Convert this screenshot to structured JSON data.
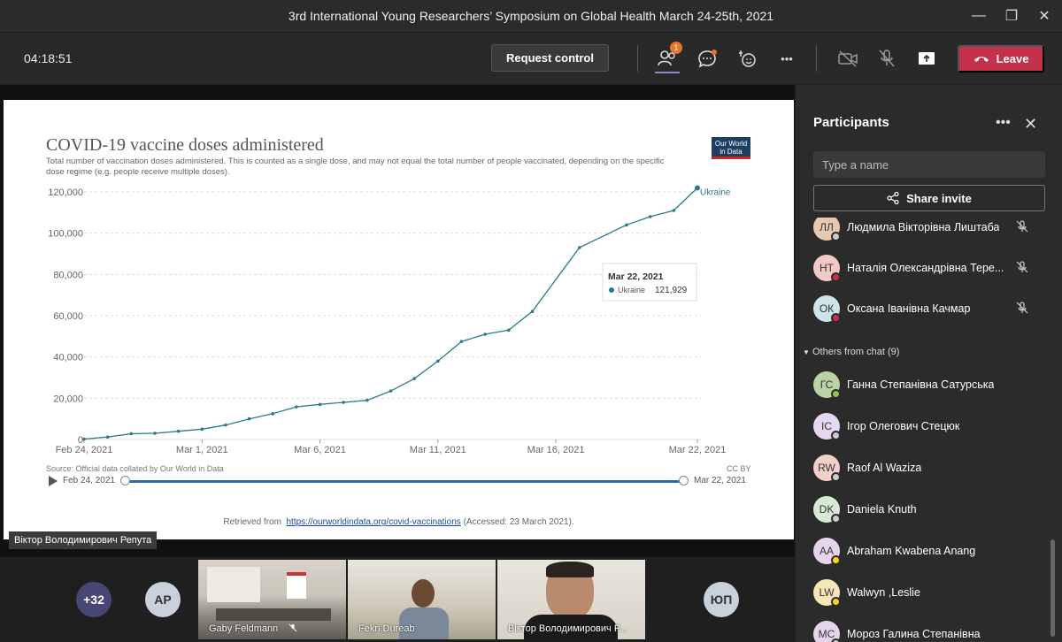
{
  "window": {
    "title": "3rd International Young Researchers’ Symposium on Global Health March 24-25th, 2021",
    "minimize": "—",
    "restore": "❐",
    "close": "✕"
  },
  "toolbar": {
    "timer": "04:18:51",
    "request_control": "Request control",
    "participants_badge": "1",
    "more": "•••",
    "leave": "Leave"
  },
  "slide": {
    "logo_text": "Our World in Data",
    "source": "Source: Official data collated by Our World in Data",
    "license": "CC BY",
    "timeline_start": "Feb 24, 2021",
    "timeline_end": "Mar 22, 2021",
    "retrieved_prefix": "Retrieved from",
    "retrieved_link": "https://ourworldindata.org/covid-vaccinations",
    "retrieved_suffix": "(Accessed: 23 March 2021).",
    "presenter": "Віктор Володимирович Репута"
  },
  "chart_data": {
    "type": "line",
    "title": "COVID-19 vaccine doses administered",
    "subtitle": "Total number of vaccination doses administered. This is counted as a single dose, and may not equal the total number of people vaccinated, depending on the specific dose regime (e.g. people receive multiple doses).",
    "x_tick_labels": [
      "Feb 24, 2021",
      "Mar 1, 2021",
      "Mar 6, 2021",
      "Mar 11, 2021",
      "Mar 16, 2021",
      "Mar 22, 2021"
    ],
    "x_tick_days": [
      0,
      5,
      10,
      15,
      20,
      26
    ],
    "y_ticks": [
      0,
      20000,
      40000,
      60000,
      80000,
      100000,
      120000
    ],
    "y_tick_labels": [
      "0",
      "20,000",
      "40,000",
      "60,000",
      "80,000",
      "100,000",
      "120,000"
    ],
    "ylim": [
      0,
      120000
    ],
    "grid": true,
    "series": [
      {
        "name": "Ukraine",
        "color": "#2a7a8c",
        "x": [
          "Feb 24, 2021",
          "Feb 25, 2021",
          "Feb 26, 2021",
          "Feb 27, 2021",
          "Feb 28, 2021",
          "Mar 1, 2021",
          "Mar 2, 2021",
          "Mar 3, 2021",
          "Mar 4, 2021",
          "Mar 5, 2021",
          "Mar 6, 2021",
          "Mar 7, 2021",
          "Mar 8, 2021",
          "Mar 9, 2021",
          "Mar 10, 2021",
          "Mar 11, 2021",
          "Mar 12, 2021",
          "Mar 13, 2021",
          "Mar 14, 2021",
          "Mar 15, 2021",
          "Mar 17, 2021",
          "Mar 19, 2021",
          "Mar 20, 2021",
          "Mar 21, 2021",
          "Mar 22, 2021"
        ],
        "x_days": [
          0,
          1,
          2,
          3,
          4,
          5,
          6,
          7,
          8,
          9,
          10,
          11,
          12,
          13,
          14,
          15,
          16,
          17,
          18,
          19,
          21,
          23,
          24,
          25,
          26
        ],
        "values": [
          200,
          1200,
          2800,
          3000,
          4000,
          5000,
          7000,
          10000,
          12500,
          15800,
          17000,
          18000,
          19000,
          23500,
          29500,
          38000,
          47500,
          51000,
          53000,
          62000,
          93000,
          104000,
          108000,
          111000,
          121929
        ]
      }
    ],
    "series_label": "Ukraine",
    "tooltip": {
      "date": "Mar 22, 2021",
      "series": "Ukraine",
      "value": "121,929"
    }
  },
  "strip": {
    "overflow_count": "+32",
    "avatar1": "AP",
    "avatar2": "ЮП",
    "tiles": [
      {
        "name": "Gaby Feldmann"
      },
      {
        "name": "Fekri.Dureab"
      },
      {
        "name": "Віктор Володимирович Р..."
      }
    ]
  },
  "panel": {
    "title": "Participants",
    "more": "•••",
    "close": "✕",
    "search_placeholder": "Type a name",
    "share_invite": "Share invite",
    "section_label": "Others from chat (9)",
    "in_meeting": [
      {
        "name": "Людмила Вікторівна Лиштаба",
        "initials": "ЛЛ",
        "color": "#e8c9b0",
        "status": "#cccccc",
        "muted": true
      },
      {
        "name": "Наталія Олександрівна Тере...",
        "initials": "НТ",
        "color": "#f2c9c5",
        "status": "#c4314b",
        "muted": true
      },
      {
        "name": "Оксана Іванівна Качмар",
        "initials": "ОК",
        "color": "#cde4e8",
        "status": "#c4314b",
        "muted": true
      }
    ],
    "others": [
      {
        "name": "Ганна Степанівна Сатурська",
        "initials": "ГС",
        "color": "#b9d3a6",
        "status": "#92c353"
      },
      {
        "name": "Ігор Олегович Стецюк",
        "initials": "ІС",
        "color": "#e6d8f0",
        "status": "#cccccc"
      },
      {
        "name": "Raof Al Waziza",
        "initials": "RW",
        "color": "#f2cfc8",
        "status": "#cccccc"
      },
      {
        "name": "Daniela Knuth",
        "initials": "DK",
        "color": "#d7ead3",
        "status": "#cccccc"
      },
      {
        "name": "Abraham Kwabena Anang",
        "initials": "AA",
        "color": "#e6d3ec",
        "status": "#f8d22a"
      },
      {
        "name": "Walwyn ,Leslie",
        "initials": "LW",
        "color": "#f7e6b5",
        "status": "#f8d22a"
      },
      {
        "name": "Мороз Галина Степанівна",
        "initials": "МС",
        "color": "#e6d3ec",
        "status": "#cccccc"
      }
    ]
  }
}
